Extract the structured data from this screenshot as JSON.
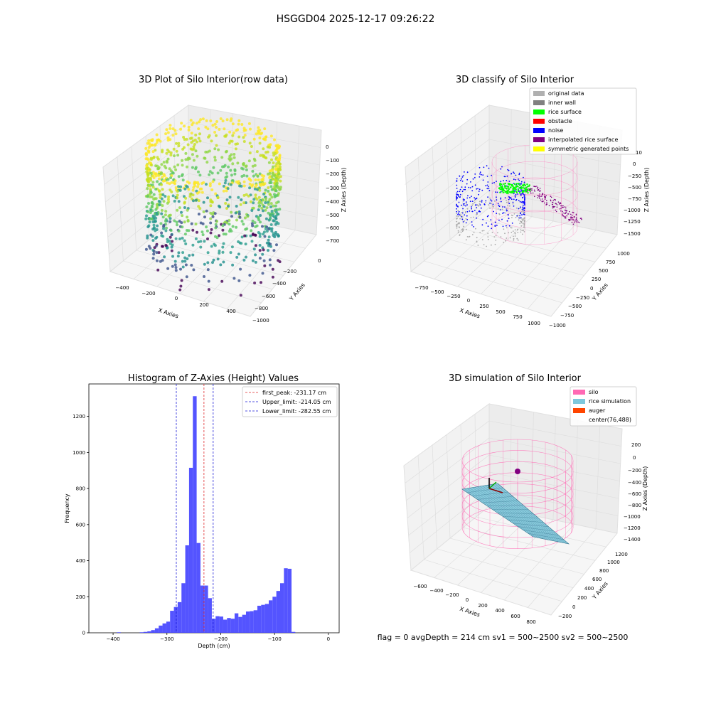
{
  "suptitle": "HSGGD04 2025-12-17 09:26:22",
  "footer": "flag = 0     avgDepth = 214 cm  sv1 = 500~2500  sv2 = 500~2500",
  "colors": {
    "hist": "#4b4bff",
    "peak_line": "#e0282a",
    "limit_line": "#1a1ad6",
    "silo": "#ff69b4",
    "rice_sim": "#7ec8dc",
    "auger": "#ff4500",
    "original": "#b0b0b0",
    "wall": "#808080",
    "rice": "#00ff00",
    "obstacle": "#ff0000",
    "noise": "#0000ff",
    "interp": "#800080",
    "sym": "#ffff00"
  },
  "chart_data": [
    {
      "type": "scatter",
      "title": "3D Plot of Silo Interior(row data)",
      "xlabel": "X Axies",
      "ylabel": "Y Axies",
      "zlabel": "Z Axies (Depth)",
      "x_ticks": [
        "−400",
        "−200",
        "0",
        "200",
        "400"
      ],
      "y_ticks": [
        "0",
        "−200",
        "−400",
        "−600",
        "−800",
        "−1000"
      ],
      "z_ticks": [
        "0",
        "−100",
        "−200",
        "−300",
        "−400",
        "−500",
        "−600",
        "−700"
      ],
      "xlim": [
        -450,
        450
      ],
      "ylim": [
        -1000,
        0
      ],
      "zlim": [
        -750,
        0
      ]
    },
    {
      "type": "scatter",
      "title": "3D classify of Silo Interior",
      "xlabel": "X Axies",
      "ylabel": "Y Axies",
      "zlabel": "Z Axies (Depth)",
      "x_ticks": [
        "−750",
        "−500",
        "−250",
        "0",
        "250",
        "500",
        "750",
        "1000"
      ],
      "y_ticks": [
        "−1000",
        "−750",
        "−500",
        "−250",
        "0",
        "250",
        "500",
        "750",
        "1000"
      ],
      "z_ticks": [
        "0",
        "−250",
        "−500",
        "−750",
        "−1000",
        "−1250",
        "−1500"
      ],
      "z_tick_partial": "10",
      "legend": [
        {
          "label": "original data",
          "color": "#b0b0b0"
        },
        {
          "label": "inner wall",
          "color": "#808080"
        },
        {
          "label": "rice surface",
          "color": "#00ff00"
        },
        {
          "label": "obstacle",
          "color": "#ff0000"
        },
        {
          "label": "noise",
          "color": "#0000ff"
        },
        {
          "label": "interpolated rice surface",
          "color": "#800080"
        },
        {
          "label": "symmetric generated points",
          "color": "#ffff00"
        }
      ],
      "legend_position": "top-right"
    },
    {
      "type": "bar",
      "title": "Histogram of Z-Axies (Height) Values",
      "xlabel": "Depth (cm)",
      "ylabel": "Frequency",
      "xlim": [
        -445,
        20
      ],
      "ylim": [
        0,
        1380
      ],
      "x_ticks": [
        -400,
        -300,
        -200,
        -100,
        0
      ],
      "y_ticks": [
        0,
        200,
        400,
        600,
        800,
        1000,
        1200
      ],
      "bin_start": -421,
      "bin_width": 7.05,
      "values": [
        0,
        0,
        0,
        0,
        3,
        0,
        0,
        0,
        0,
        0,
        3,
        5,
        8,
        15,
        25,
        40,
        52,
        62,
        122,
        143,
        170,
        275,
        485,
        915,
        1312,
        498,
        262,
        262,
        192,
        78,
        92,
        90,
        73,
        82,
        78,
        108,
        88,
        100,
        118,
        120,
        125,
        150,
        155,
        160,
        180,
        200,
        232,
        275,
        358,
        355,
        5
      ],
      "vlines": [
        {
          "label": "first_peak: -231.17 cm",
          "x": -231.17,
          "style": "peak"
        },
        {
          "label": "Upper_limit: -214.05 cm",
          "x": -214.05,
          "style": "limit"
        },
        {
          "label": "Lower_limit: -282.55 cm",
          "x": -282.55,
          "style": "limit"
        }
      ],
      "legend_position": "top-right"
    },
    {
      "type": "area",
      "title": "3D simulation of Silo Interior",
      "xlabel": "X Axies",
      "ylabel": "Y Axies",
      "zlabel": "Z Axies (Depth)",
      "x_ticks": [
        "−600",
        "−400",
        "−200",
        "0",
        "200",
        "400",
        "600",
        "800"
      ],
      "y_ticks": [
        "−200",
        "0",
        "200",
        "400",
        "600",
        "800",
        "1000",
        "1200"
      ],
      "z_ticks": [
        "200",
        "0",
        "−200",
        "−400",
        "−600",
        "−800",
        "−1000",
        "−1200",
        "−1400"
      ],
      "legend": [
        {
          "label": "silo",
          "color": "#ff69b4"
        },
        {
          "label": "rice simulation",
          "color": "#7ec8dc"
        },
        {
          "label": "auger",
          "color": "#ff4500"
        },
        {
          "label": "center(76,488)",
          "color": ""
        }
      ],
      "legend_position": "top-right"
    }
  ]
}
